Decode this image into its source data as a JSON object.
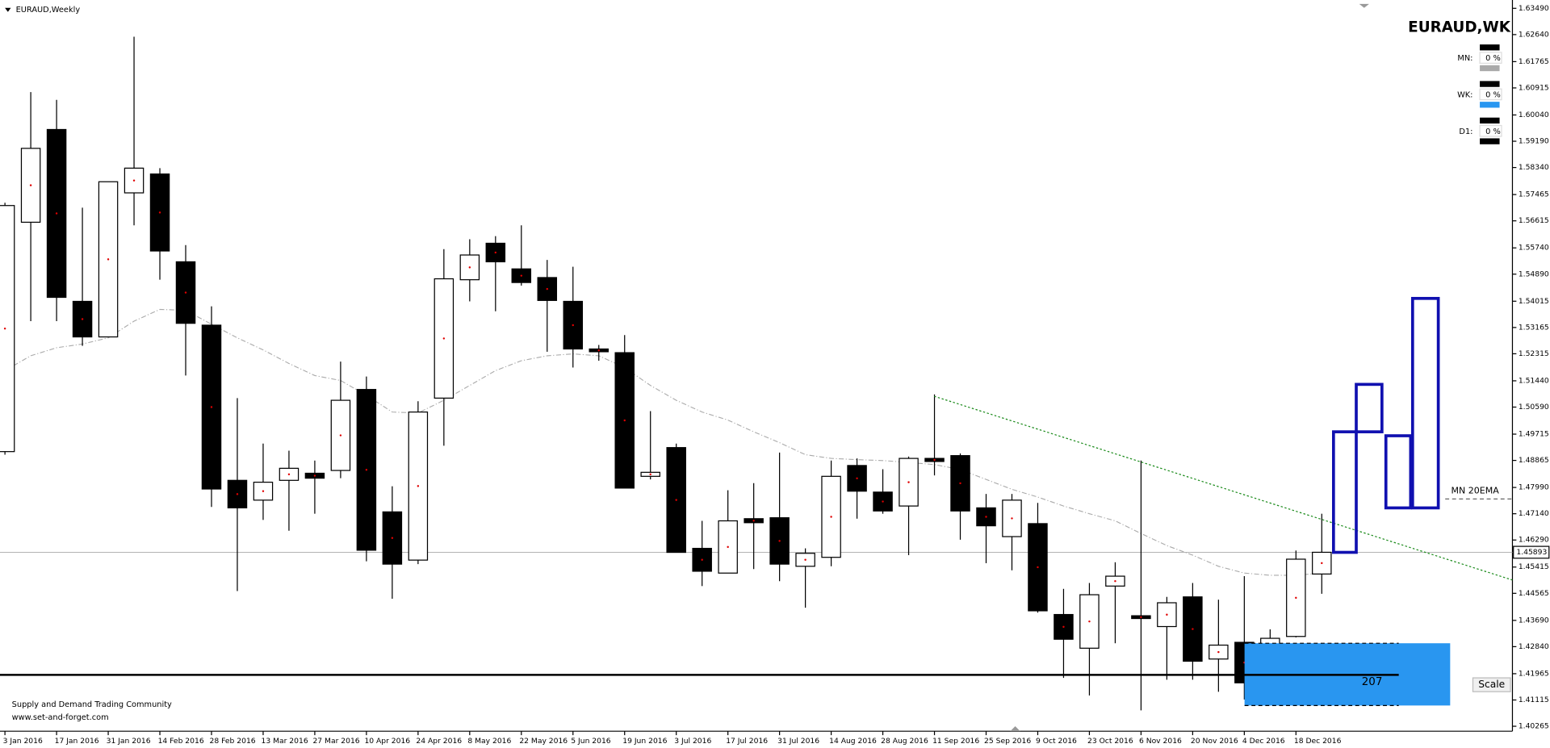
{
  "chart_data": {
    "type": "candlestick",
    "title": "EURAUD,Weekly",
    "categories": [
      "3 Jan 2016",
      null,
      "17 Jan 2016",
      null,
      "31 Jan 2016",
      null,
      "14 Feb 2016",
      null,
      "28 Feb 2016",
      null,
      "13 Mar 2016",
      null,
      "27 Mar 2016",
      null,
      "10 Apr 2016",
      null,
      "24 Apr 2016",
      null,
      "8 May 2016",
      null,
      "22 May 2016",
      null,
      "5 Jun 2016",
      null,
      "19 Jun 2016",
      null,
      "3 Jul 2016",
      null,
      "17 Jul 2016",
      null,
      "31 Jul 2016",
      null,
      "14 Aug 2016",
      null,
      "28 Aug 2016",
      null,
      "11 Sep 2016",
      null,
      "25 Sep 2016",
      null,
      "9 Oct 2016",
      null,
      "23 Oct 2016",
      null,
      "6 Nov 2016",
      null,
      "20 Nov 2016",
      null,
      "4 Dec 2016",
      null,
      "18 Dec 2016",
      null
    ],
    "open": [
      1.4915,
      1.5657,
      1.5957,
      1.5401,
      1.5286,
      1.5752,
      1.5813,
      1.5529,
      1.5324,
      1.4822,
      1.4758,
      1.4822,
      1.4845,
      1.4854,
      1.5116,
      1.472,
      1.4564,
      1.5088,
      1.5471,
      1.5589,
      1.5506,
      1.5478,
      1.5401,
      1.5247,
      1.5235,
      1.4835,
      1.4928,
      1.4602,
      1.4522,
      1.4698,
      1.4701,
      1.4544,
      1.4573,
      1.487,
      1.4784,
      1.4739,
      1.4893,
      1.4902,
      1.4733,
      1.464,
      1.4682,
      1.4388,
      1.4279,
      1.448,
      1.4384,
      1.4349,
      1.4445,
      1.4244,
      1.4298,
      1.4132,
      1.4317,
      1.4519
    ],
    "high": [
      1.572,
      1.6078,
      1.6053,
      1.5704,
      1.5788,
      1.6257,
      1.5832,
      1.5583,
      1.5385,
      1.5088,
      1.4941,
      1.4918,
      1.4886,
      1.5206,
      1.5158,
      1.4803,
      1.5078,
      1.557,
      1.5602,
      1.5612,
      1.5647,
      1.5535,
      1.5513,
      1.526,
      1.5292,
      1.5046,
      1.4941,
      1.4691,
      1.479,
      1.4813,
      1.4912,
      1.4602,
      1.4886,
      1.4893,
      1.4858,
      1.4899,
      1.51,
      1.4909,
      1.4778,
      1.4778,
      1.4749,
      1.4471,
      1.449,
      1.4557,
      1.4886,
      1.4445,
      1.449,
      1.4436,
      1.4512,
      1.434,
      1.4595,
      1.4714
    ],
    "low": [
      1.4905,
      1.5337,
      1.5337,
      1.5257,
      1.5286,
      1.5647,
      1.5471,
      1.5161,
      1.4736,
      1.4464,
      1.4694,
      1.4659,
      1.4714,
      1.4829,
      1.456,
      1.4439,
      1.4551,
      1.4934,
      1.5401,
      1.5369,
      1.5452,
      1.5238,
      1.5187,
      1.5209,
      1.4797,
      1.4825,
      1.4589,
      1.448,
      1.4522,
      1.4535,
      1.4496,
      1.441,
      1.4544,
      1.4698,
      1.4714,
      1.458,
      1.4838,
      1.463,
      1.4554,
      1.4531,
      1.4394,
      1.4183,
      1.4126,
      1.4295,
      1.4078,
      1.4177,
      1.4177,
      1.4138,
      1.4113,
      1.4094,
      1.4314,
      1.4455
    ],
    "close": [
      1.5711,
      1.5896,
      1.5414,
      1.5286,
      1.5788,
      1.5832,
      1.5564,
      1.533,
      1.4794,
      1.4733,
      1.4816,
      1.4861,
      1.4829,
      1.5081,
      1.4596,
      1.4551,
      1.5043,
      1.5474,
      1.5551,
      1.5529,
      1.5462,
      1.5404,
      1.5247,
      1.5238,
      1.4797,
      1.4848,
      1.4589,
      1.4528,
      1.4691,
      1.4685,
      1.4551,
      1.4586,
      1.4835,
      1.4787,
      1.4723,
      1.4893,
      1.4883,
      1.4723,
      1.4675,
      1.4758,
      1.44,
      1.4308,
      1.4452,
      1.4512,
      1.4375,
      1.4426,
      1.4237,
      1.4289,
      1.4167,
      1.4311,
      1.4567,
      1.45893
    ],
    "ema": {
      "color": "#aaaaaa",
      "values": [
        1.5177,
        1.5225,
        1.5251,
        1.5263,
        1.5283,
        1.5337,
        1.5375,
        1.5372,
        1.5327,
        1.5283,
        1.5244,
        1.52,
        1.5161,
        1.5145,
        1.5097,
        1.5043,
        1.504,
        1.5081,
        1.5129,
        1.5177,
        1.5209,
        1.5225,
        1.5231,
        1.5225,
        1.5187,
        1.5129,
        1.5081,
        1.5043,
        1.5017,
        1.4979,
        1.4944,
        1.4905,
        1.4893,
        1.4889,
        1.4886,
        1.488,
        1.4873,
        1.4857,
        1.4825,
        1.4793,
        1.4768,
        1.4739,
        1.4714,
        1.4691,
        1.465,
        1.4611,
        1.458,
        1.4544,
        1.4522,
        1.4515,
        1.4515,
        1.4522
      ]
    },
    "up_color": "#ffffff",
    "down_color": "#000000",
    "current_price": 1.45893,
    "ylim": [
      1.40105,
      1.63759
    ],
    "yticks": [
      1.40265,
      1.41115,
      1.41965,
      {
        "value": 1.4284,
        "label": "1.42840"
      },
      {
        "value": 1.4369,
        "label": "1.43690"
      },
      1.44565,
      1.45415,
      {
        "value": 1.4629,
        "label": "1.46290"
      },
      {
        "value": 1.4714,
        "label": "1.47140"
      },
      {
        "value": 1.4799,
        "label": "1.47990"
      },
      1.48865,
      1.49715,
      {
        "value": 1.5059,
        "label": "1.50590"
      },
      {
        "value": 1.5144,
        "label": "1.51440"
      },
      1.52315,
      1.53165,
      1.54015,
      {
        "value": 1.5489,
        "label": "1.54890"
      },
      {
        "value": 1.5574,
        "label": "1.55740"
      },
      1.56615,
      1.57465,
      {
        "value": 1.5834,
        "label": "1.58340"
      },
      {
        "value": 1.5919,
        "label": "1.59190"
      },
      {
        "value": 1.6004,
        "label": "1.60040"
      },
      1.60915,
      1.61765,
      {
        "value": 1.6264,
        "label": "1.62640"
      },
      {
        "value": 1.6349,
        "label": "1.63490"
      }
    ],
    "annotations": {
      "ema_label": "MN 20EMA",
      "zone_label": "207"
    }
  },
  "panel": {
    "title": "EURAUD,WK",
    "rows": [
      {
        "label": "MN:",
        "value": "0 %"
      },
      {
        "label": "WK:",
        "value": "0 %"
      },
      {
        "label": "D1:",
        "value": "0 %"
      }
    ]
  },
  "watermark": {
    "line1": "Supply and Demand Trading Community",
    "line2": "www.set-and-forget.com"
  },
  "scale_button": "Scale"
}
